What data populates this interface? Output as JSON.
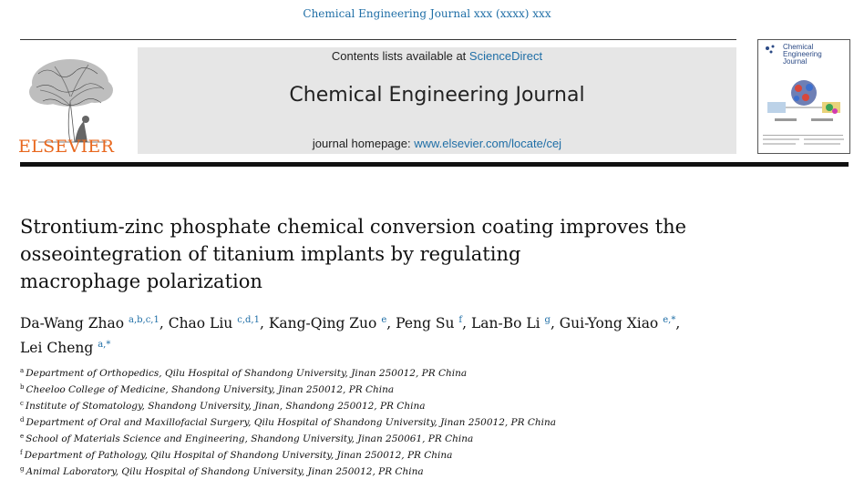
{
  "running_head": "Chemical Engineering Journal xxx (xxxx) xxx",
  "publisher": {
    "name": "ELSEVIER",
    "logo_icon": "elsevier-tree-icon"
  },
  "masthead": {
    "contents_prefix": "Contents lists available at ",
    "contents_link": "ScienceDirect",
    "journal_title": "Chemical Engineering Journal",
    "homepage_prefix": "journal homepage: ",
    "homepage_link": "www.elsevier.com/locate/cej"
  },
  "cover": {
    "title_lines": [
      "Chemical",
      "Engineering",
      "Journal"
    ]
  },
  "article": {
    "title_lines": [
      "Strontium-zinc phosphate chemical conversion coating improves the",
      "osseointegration of titanium implants by regulating",
      "macrophage polarization"
    ]
  },
  "authors": [
    {
      "name": "Da-Wang Zhao",
      "marks": "a,b,c,1"
    },
    {
      "name": "Chao Liu",
      "marks": "c,d,1"
    },
    {
      "name": "Kang-Qing Zuo",
      "marks": "e"
    },
    {
      "name": "Peng Su",
      "marks": "f"
    },
    {
      "name": "Lan-Bo Li",
      "marks": "g"
    },
    {
      "name": "Gui-Yong Xiao",
      "marks": "e,*"
    },
    {
      "name": "Lei Cheng",
      "marks": "a,*"
    }
  ],
  "affiliations": [
    {
      "mark": "a",
      "text": "Department of Orthopedics, Qilu Hospital of Shandong University, Jinan 250012, PR China"
    },
    {
      "mark": "b",
      "text": "Cheeloo College of Medicine, Shandong University, Jinan 250012, PR China"
    },
    {
      "mark": "c",
      "text": "Institute of Stomatology, Shandong University, Jinan, Shandong 250012, PR China"
    },
    {
      "mark": "d",
      "text": "Department of Oral and Maxillofacial Surgery, Qilu Hospital of Shandong University, Jinan 250012, PR China"
    },
    {
      "mark": "e",
      "text": "School of Materials Science and Engineering, Shandong University, Jinan 250061, PR China"
    },
    {
      "mark": "f",
      "text": "Department of Pathology, Qilu Hospital of Shandong University, Jinan 250012, PR China"
    },
    {
      "mark": "g",
      "text": "Animal Laboratory, Qilu Hospital of Shandong University, Jinan 250012, PR China"
    }
  ]
}
